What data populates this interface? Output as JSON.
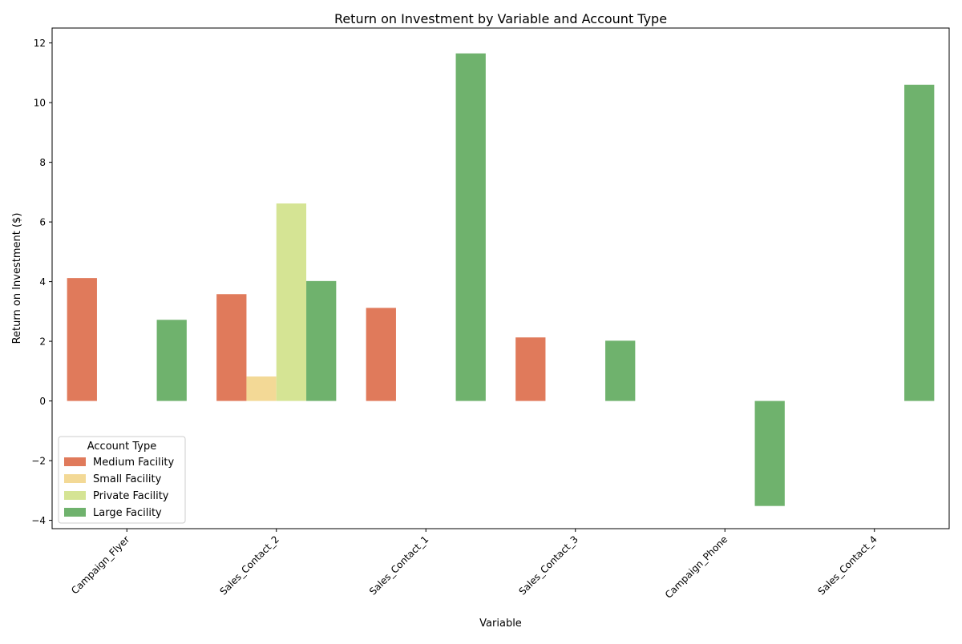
{
  "chart_data": {
    "type": "bar",
    "title": "Return on Investment by Variable and Account Type",
    "xlabel": "Variable",
    "ylabel": "Return on Investment ($)",
    "categories": [
      "Campaign_Flyer",
      "Sales_Contact_2",
      "Sales_Contact_1",
      "Sales_Contact_3",
      "Campaign_Phone",
      "Sales_Contact_4"
    ],
    "ylim": [
      -4.28,
      12.5
    ],
    "yticks": [
      -4,
      -2,
      0,
      2,
      4,
      6,
      8,
      10,
      12
    ],
    "ytick_labels": [
      "−4",
      "−2",
      "0",
      "2",
      "4",
      "6",
      "8",
      "10",
      "12"
    ],
    "grid": false,
    "legend": {
      "title": "Account Type",
      "placement": "lower-left"
    },
    "series": [
      {
        "name": "Medium Facility",
        "color": "#e07a5b",
        "values": [
          4.12,
          3.58,
          3.12,
          2.13,
          null,
          null
        ]
      },
      {
        "name": "Small Facility",
        "color": "#f3d996",
        "values": [
          null,
          0.82,
          null,
          null,
          null,
          null
        ]
      },
      {
        "name": "Private Facility",
        "color": "#d5e494",
        "values": [
          null,
          6.62,
          null,
          null,
          null,
          null
        ]
      },
      {
        "name": "Large Facility",
        "color": "#6fb26d",
        "values": [
          2.72,
          4.02,
          11.65,
          2.02,
          -3.52,
          10.6
        ]
      }
    ]
  }
}
